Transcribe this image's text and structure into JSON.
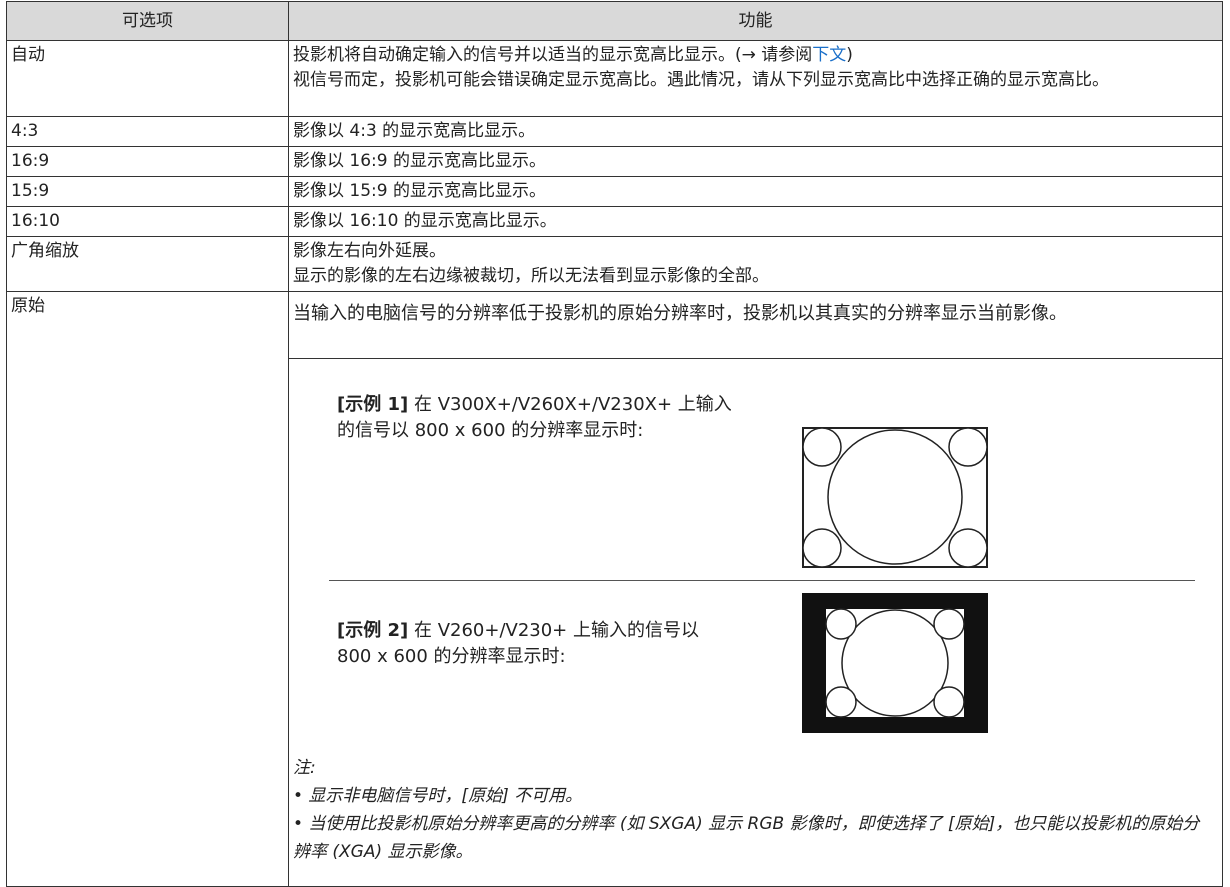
{
  "table": {
    "header": [
      "可选项",
      "功能"
    ],
    "rows": [
      {
        "option": "自动",
        "function": [
          "投影机将自动确定输入的信号并以适当的显示宽高比显示。(→ 请参阅",
          "下文",
          ")",
          "视信号而定，投影机可能会错误确定显示宽高比。遇此情况，请从下列显示宽高比中选择正确的显示宽高比。"
        ]
      },
      {
        "option": "4:3",
        "function": [
          "影像以 4:3 的显示宽高比显示。"
        ]
      },
      {
        "option": "16:9",
        "function": [
          "影像以 16:9 的显示宽高比显示。"
        ]
      },
      {
        "option": "15:9",
        "function": [
          "影像以 15:9 的显示宽高比显示。"
        ]
      },
      {
        "option": "16:10",
        "function": [
          "影像以 16:10 的显示宽高比显示。"
        ]
      },
      {
        "option": "广角缩放",
        "function": [
          "影像左右向外延展。",
          "显示的影像的左右边缘被裁切，所以无法看到显示影像的全部。"
        ]
      },
      {
        "option": "原始",
        "function": [
          "当输入的电脑信号的分辨率低于投影机的原始分辨率时，投影机以其真实的分辨率显示当前影像。"
        ],
        "examples": [
          {
            "label": "[示例 1]",
            "text": " 在 V300X+/V260X+/V230X+ 上输入的信号以 800 x 600 的分辨率显示时:"
          },
          {
            "label": "[示例 2]",
            "text": " 在 V260+/V230+ 上输入的信号以 800 x 600 的分辨率显示时:"
          }
        ],
        "note": {
          "title": "注:",
          "items": [
            "• 显示非电脑信号时，[原始] 不可用。",
            "• 当使用比投影机原始分辨率更高的分辨率 (如 SXGA) 显示 RGB 影像时，即使选择了 [原始]，也只能以投影机的原始分辨率 (XGA) 显示影像。"
          ]
        }
      }
    ]
  }
}
